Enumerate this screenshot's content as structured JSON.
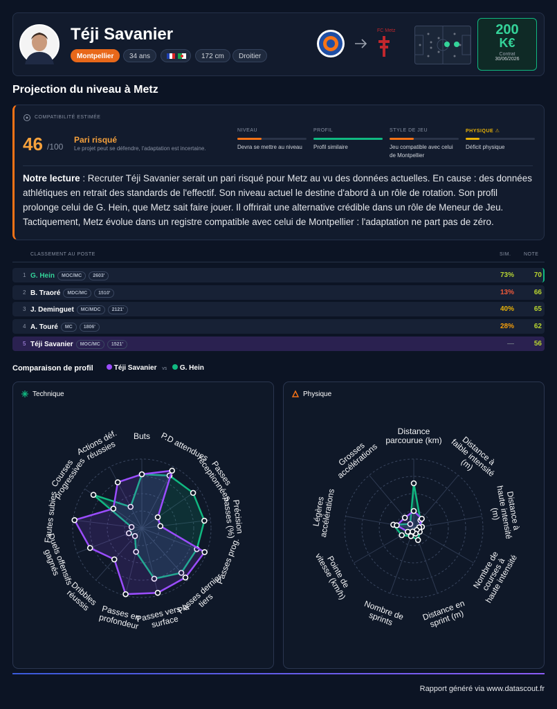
{
  "player": {
    "name": "Téji Savanier",
    "club": "Montpellier",
    "age": "34 ans",
    "height": "172 cm",
    "foot": "Droitier"
  },
  "transfer": {
    "to_club": "FC Metz",
    "value": "200",
    "value_unit": "K€",
    "contract_label": "Contrat",
    "contract_date": "30/06/2026"
  },
  "section_title": "Projection du niveau à Metz",
  "compatibility": {
    "label": "COMPATIBILITÉ ESTIMÉE",
    "score": 46,
    "max": "/100",
    "verdict": "Pari risqué",
    "verdict_note": "Le projet peut se défendre, l'adaptation est incertaine.",
    "criteria": [
      {
        "label": "NIVEAU",
        "level": 35,
        "color": "#f97316",
        "note": "Devra se mettre au niveau"
      },
      {
        "label": "PROFIL",
        "level": 100,
        "color": "#10b981",
        "note": "Profil similaire"
      },
      {
        "label": "STYLE DE JEU",
        "level": 35,
        "color": "#f97316",
        "note": "Jeu compatible avec celui de Montpellier"
      },
      {
        "label": "PHYSIQUE ⚠",
        "level": 20,
        "color": "#eab308",
        "note": "Déficit physique"
      }
    ]
  },
  "reading": {
    "lead": "Notre lecture",
    "text": " : Recruter Téji Savanier serait un pari risqué pour Metz au vu des données actuelles. En cause : des données athlétiques en retrait des standards de l'effectif. Son niveau actuel le destine d'abord à un rôle de rotation. Son profil prolonge celui de G. Hein, que Metz sait faire jouer. Il offrirait une alternative crédible dans un rôle de Meneur de Jeu. Tactiquement, Metz évolue dans un registre compatible avec celui de Montpellier : l'adaptation ne part pas de zéro."
  },
  "ranking": {
    "title": "CLASSEMENT AU POSTE",
    "sim_header": "SIM.",
    "note_header": "NOTE",
    "rows": [
      {
        "rank": 1,
        "name": "G. Hein",
        "position": "MOC/MC",
        "minutes": "2603'",
        "sim": "73%",
        "sim_color": "#b5d334",
        "note": 70
      },
      {
        "rank": 2,
        "name": "B. Traoré",
        "position": "MDC/MC",
        "minutes": "1510'",
        "sim": "13%",
        "sim_color": "#f05a3a",
        "note": 66
      },
      {
        "rank": 3,
        "name": "J. Deminguet",
        "position": "MC/MDC",
        "minutes": "2121'",
        "sim": "40%",
        "sim_color": "#eab308",
        "note": 65
      },
      {
        "rank": 4,
        "name": "A. Touré",
        "position": "MC",
        "minutes": "1806'",
        "sim": "28%",
        "sim_color": "#f59e0b",
        "note": 62
      },
      {
        "rank": 5,
        "name": "Téji Savanier",
        "position": "MOC/MC",
        "minutes": "1521'",
        "sim": "—",
        "sim_color": "#6b7280",
        "note": 56
      }
    ]
  },
  "comparison_title": "Comparaison de profil",
  "vs": "vs",
  "chart_data": [
    {
      "type": "radar",
      "title": "Technique",
      "categories": [
        "Buts",
        "P.D attendues",
        "Passes réceptionnées",
        "Précision passes (%)",
        "Passes prog.",
        "Passes dernier tiers",
        "Passes vers la surface",
        "Passes en profondeur",
        "Dribbles réussis",
        "Duels offensifs gagnés",
        "Fautes subies",
        "Courses progressives",
        "Actions déf. réussies"
      ],
      "rlim": [
        0,
        100
      ],
      "rticks": [
        25,
        50,
        75,
        100
      ],
      "series": [
        {
          "name": "Téji Savanier",
          "color": "#9b4dff",
          "values": [
            78,
            94,
            28,
            27,
            97,
            95,
            96,
            98,
            60,
            80,
            98,
            50,
            75
          ]
        },
        {
          "name": "G. Hein",
          "color": "#10b981",
          "values": [
            78,
            86,
            90,
            91,
            85,
            86,
            75,
            35,
            15,
            20,
            15,
            85,
            35
          ]
        }
      ]
    },
    {
      "type": "radar",
      "title": "Physique",
      "categories": [
        "Distance parcourue (km)",
        "Distance à faible intensité (m)",
        "Distance à haute intensité (m)",
        "Nombre de courses à haute intensité",
        "Distance en sprint (m)",
        "Nombre de sprints",
        "Pointe de vitesse (km/h)",
        "Légères accélérations",
        "Grosses accélérations"
      ],
      "rlim": [
        0,
        100
      ],
      "rticks": [
        25,
        50,
        75,
        100
      ],
      "series": [
        {
          "name": "Téji Savanier",
          "color": "#9b4dff",
          "values": [
            25,
            18,
            8,
            5,
            8,
            5,
            10,
            25,
            20
          ]
        },
        {
          "name": "G. Hein",
          "color": "#10b981",
          "values": [
            65,
            15,
            12,
            10,
            18,
            12,
            20,
            30,
            8
          ]
        }
      ]
    }
  ],
  "footer": "Rapport généré via www.datascout.fr"
}
